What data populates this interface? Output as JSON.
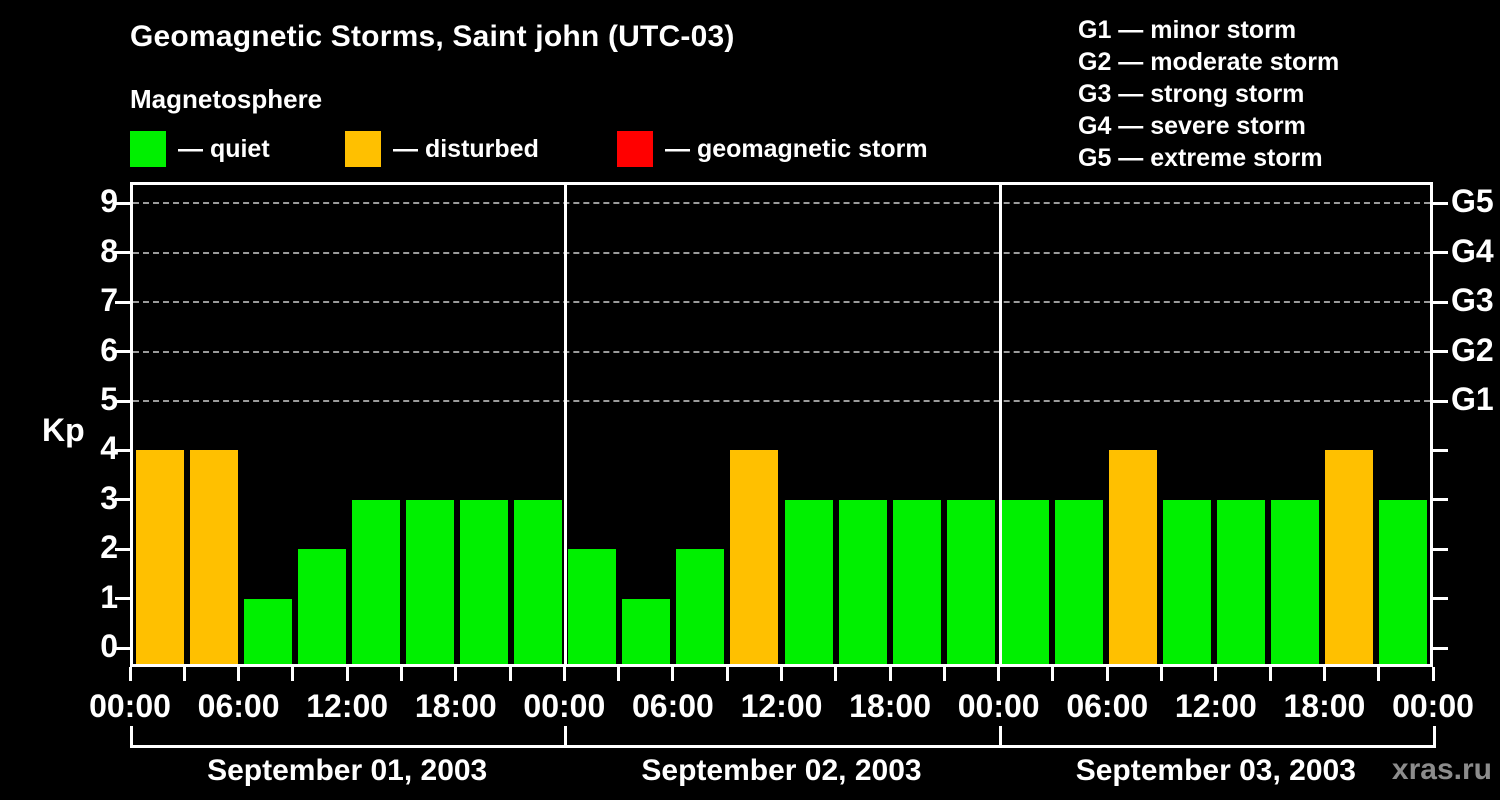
{
  "title": "Geomagnetic Storms, Saint john (UTC-03)",
  "subtitle": "Magnetosphere",
  "legend": {
    "items": [
      {
        "key": "quiet",
        "label": "— quiet",
        "color": "#00f000"
      },
      {
        "key": "disturbed",
        "label": "— disturbed",
        "color": "#ffc000"
      },
      {
        "key": "storm",
        "label": "— geomagnetic storm",
        "color": "#ff0000"
      }
    ]
  },
  "g_legend": {
    "items": [
      "G1 — minor storm",
      "G2 — moderate storm",
      "G3 — strong storm",
      "G4 — severe storm",
      "G5 — extreme storm"
    ]
  },
  "watermark": "xras.ru",
  "chart_data": {
    "type": "bar",
    "title": "Geomagnetic Storms, Saint john (UTC-03)",
    "subtitle": "Magnetosphere",
    "ylabel": "Kp",
    "ylim": [
      0,
      9
    ],
    "yticks": [
      0,
      1,
      2,
      3,
      4,
      5,
      6,
      7,
      8,
      9
    ],
    "gridlines": [
      5,
      6,
      7,
      8,
      9
    ],
    "right_axis_labels": [
      {
        "value": 5,
        "label": "G1"
      },
      {
        "value": 6,
        "label": "G2"
      },
      {
        "value": 7,
        "label": "G3"
      },
      {
        "value": 8,
        "label": "G4"
      },
      {
        "value": 9,
        "label": "G5"
      }
    ],
    "x_time_labels": [
      "00:00",
      "06:00",
      "12:00",
      "18:00"
    ],
    "bin_hours": 3,
    "days": [
      {
        "date": "September 01, 2003",
        "values": [
          4,
          4,
          1,
          2,
          3,
          3,
          3,
          3
        ]
      },
      {
        "date": "September 02, 2003",
        "values": [
          2,
          1,
          2,
          4,
          3,
          3,
          3,
          3
        ]
      },
      {
        "date": "September 03, 2003",
        "values": [
          3,
          3,
          4,
          3,
          3,
          3,
          4,
          3
        ]
      }
    ],
    "colors": {
      "quiet": "#00f000",
      "disturbed": "#ffc000",
      "storm": "#ff0000"
    },
    "color_thresholds": {
      "disturbed_min": 4,
      "storm_min": 5
    }
  }
}
